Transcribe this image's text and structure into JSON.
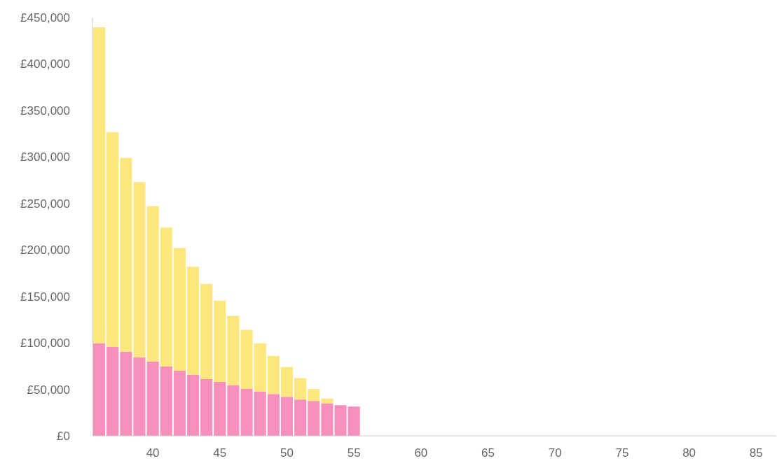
{
  "chart_data": {
    "type": "bar",
    "stacked": true,
    "x": [
      36,
      37,
      38,
      39,
      40,
      41,
      42,
      43,
      44,
      45,
      46,
      47,
      48,
      49,
      50,
      51,
      52,
      53,
      54,
      55
    ],
    "series": [
      {
        "color": "#f78fbd",
        "values": [
          99500,
          95500,
          90500,
          84500,
          80000,
          74500,
          70000,
          65500,
          61000,
          58000,
          54500,
          50500,
          47500,
          45000,
          42000,
          39000,
          37500,
          35000,
          33000,
          31500
        ]
      },
      {
        "color": "#fde67e",
        "values": [
          340000,
          231000,
          208500,
          188500,
          167000,
          149500,
          132000,
          116500,
          102500,
          87500,
          74500,
          63500,
          52000,
          41000,
          32000,
          23000,
          13000,
          5000,
          0,
          0
        ]
      }
    ],
    "xlim": [
      35.5,
      86.5
    ],
    "xticks": [
      40,
      45,
      50,
      55,
      60,
      65,
      70,
      75,
      80,
      85
    ],
    "ylim": [
      0,
      450000
    ],
    "yticks": [
      {
        "value": 0,
        "label": "£0"
      },
      {
        "value": 50000,
        "label": "£50,000"
      },
      {
        "value": 100000,
        "label": "£100,000"
      },
      {
        "value": 150000,
        "label": "£150,000"
      },
      {
        "value": 200000,
        "label": "£200,000"
      },
      {
        "value": 250000,
        "label": "£250,000"
      },
      {
        "value": 300000,
        "label": "£300,000"
      },
      {
        "value": 350000,
        "label": "£350,000"
      },
      {
        "value": 400000,
        "label": "£400,000"
      },
      {
        "value": 450000,
        "label": "£450,000"
      }
    ],
    "grid": false,
    "legend": false
  }
}
